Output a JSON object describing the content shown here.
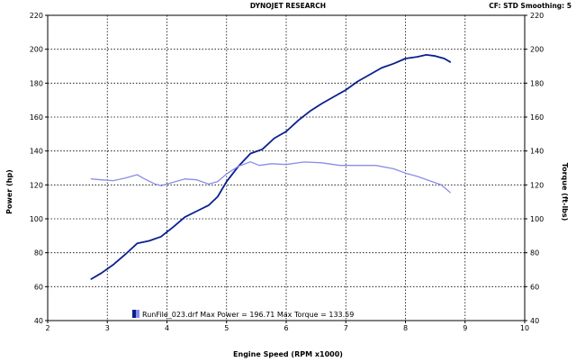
{
  "header": {
    "title": "DYNOJET RESEARCH",
    "settings": "CF: STD  Smoothing: 5"
  },
  "chart_data": {
    "type": "line",
    "title": "DYNOJET RESEARCH",
    "xlabel": "Engine Speed (RPM x1000)",
    "ylabel_left": "Power (hp)",
    "ylabel_right": "Torque (ft-lbs)",
    "xlim": [
      2,
      10
    ],
    "ylim": [
      40,
      220
    ],
    "x_ticks": [
      2,
      3,
      4,
      5,
      6,
      7,
      8,
      9,
      10
    ],
    "y_ticks": [
      40,
      60,
      80,
      100,
      120,
      140,
      160,
      180,
      200,
      220
    ],
    "grid": true,
    "legend": {
      "position": "bottom-left",
      "text": "RunFile_023.drf Max Power = 196.71    Max Torque = 133.59"
    },
    "series": [
      {
        "name": "Power",
        "color": "#0a1f8f",
        "points": [
          [
            2.73,
            64.5
          ],
          [
            2.9,
            68
          ],
          [
            3.1,
            73
          ],
          [
            3.3,
            79
          ],
          [
            3.5,
            85.5
          ],
          [
            3.7,
            87
          ],
          [
            3.9,
            89.5
          ],
          [
            4.1,
            95
          ],
          [
            4.3,
            101
          ],
          [
            4.5,
            104.5
          ],
          [
            4.7,
            108
          ],
          [
            4.85,
            113
          ],
          [
            5.0,
            122
          ],
          [
            5.2,
            131
          ],
          [
            5.4,
            138.5
          ],
          [
            5.6,
            141
          ],
          [
            5.8,
            147.5
          ],
          [
            6.0,
            151.5
          ],
          [
            6.2,
            158
          ],
          [
            6.4,
            163.5
          ],
          [
            6.6,
            168
          ],
          [
            6.8,
            172
          ],
          [
            7.0,
            176
          ],
          [
            7.2,
            181
          ],
          [
            7.4,
            185
          ],
          [
            7.6,
            189
          ],
          [
            7.8,
            191.5
          ],
          [
            8.0,
            194.5
          ],
          [
            8.2,
            195.5
          ],
          [
            8.35,
            196.71
          ],
          [
            8.5,
            196
          ],
          [
            8.65,
            194.5
          ],
          [
            8.75,
            192.5
          ]
        ]
      },
      {
        "name": "Torque",
        "color": "#8a8de6",
        "points": [
          [
            2.73,
            123.5
          ],
          [
            2.9,
            123
          ],
          [
            3.1,
            122.5
          ],
          [
            3.3,
            124
          ],
          [
            3.5,
            126
          ],
          [
            3.6,
            124
          ],
          [
            3.8,
            120.5
          ],
          [
            3.9,
            119.5
          ],
          [
            4.1,
            121.5
          ],
          [
            4.3,
            123.5
          ],
          [
            4.5,
            123
          ],
          [
            4.7,
            120.5
          ],
          [
            4.85,
            122
          ],
          [
            5.0,
            126.5
          ],
          [
            5.2,
            131
          ],
          [
            5.4,
            133.59
          ],
          [
            5.55,
            131.5
          ],
          [
            5.75,
            132.5
          ],
          [
            6.0,
            132
          ],
          [
            6.3,
            133.5
          ],
          [
            6.6,
            133
          ],
          [
            6.9,
            131.5
          ],
          [
            7.2,
            131.5
          ],
          [
            7.5,
            131.5
          ],
          [
            7.8,
            129.5
          ],
          [
            8.0,
            127
          ],
          [
            8.2,
            125
          ],
          [
            8.4,
            122.5
          ],
          [
            8.6,
            120
          ],
          [
            8.75,
            115.5
          ]
        ]
      }
    ]
  }
}
